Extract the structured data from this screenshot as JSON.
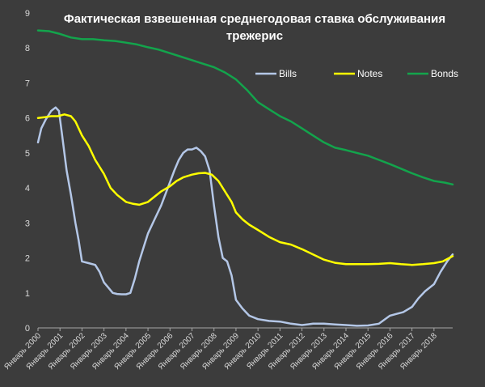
{
  "chart_data": {
    "type": "line",
    "title_line1": "Фактическая взвешенная среднегодовая ставка обслуживания",
    "title_line2": "трежерис",
    "xlabel": "",
    "ylabel": "",
    "ylim": [
      0,
      9
    ],
    "y_ticks": [
      "0",
      "1",
      "2",
      "3",
      "4",
      "5",
      "6",
      "7",
      "8",
      "9"
    ],
    "xlim": [
      2000,
      2018.85
    ],
    "x_ticks": [
      {
        "x": 2000,
        "label": "Январь 2000"
      },
      {
        "x": 2001,
        "label": "Январь 2001"
      },
      {
        "x": 2002,
        "label": "Январь 2002"
      },
      {
        "x": 2003,
        "label": "Январь 2003"
      },
      {
        "x": 2004,
        "label": "Январь 2004"
      },
      {
        "x": 2005,
        "label": "Январь 2005"
      },
      {
        "x": 2006,
        "label": "Январь 2006"
      },
      {
        "x": 2007,
        "label": "Январь 2007"
      },
      {
        "x": 2008,
        "label": "Январь 2008"
      },
      {
        "x": 2009,
        "label": "Январь 2009"
      },
      {
        "x": 2010,
        "label": "Январь 2010"
      },
      {
        "x": 2011,
        "label": "Январь 2011"
      },
      {
        "x": 2012,
        "label": "Январь 2012"
      },
      {
        "x": 2013,
        "label": "Январь 2013"
      },
      {
        "x": 2014,
        "label": "Январь 2014"
      },
      {
        "x": 2015,
        "label": "Январь 2015"
      },
      {
        "x": 2016,
        "label": "Январь 2016"
      },
      {
        "x": 2017,
        "label": "Январь 2017"
      },
      {
        "x": 2018,
        "label": "Январь 2018"
      }
    ],
    "grid": false,
    "legend_position": "top-right",
    "series": [
      {
        "name": "Bills",
        "color": "#b4c7e7",
        "x": [
          2000,
          2000.15,
          2000.35,
          2000.6,
          2000.8,
          2000.95,
          2001.1,
          2001.3,
          2001.5,
          2001.7,
          2001.85,
          2002.0,
          2002.3,
          2002.6,
          2002.8,
          2003.0,
          2003.2,
          2003.4,
          2003.6,
          2003.8,
          2004.0,
          2004.2,
          2004.4,
          2004.6,
          2004.8,
          2005.0,
          2005.3,
          2005.6,
          2005.9,
          2006.2,
          2006.4,
          2006.6,
          2006.8,
          2007.0,
          2007.2,
          2007.4,
          2007.6,
          2007.8,
          2008.0,
          2008.2,
          2008.4,
          2008.6,
          2008.8,
          2009.0,
          2009.3,
          2009.6,
          2010.0,
          2010.5,
          2011.0,
          2011.5,
          2012.0,
          2012.5,
          2013.0,
          2013.5,
          2014.0,
          2014.5,
          2015.0,
          2015.5,
          2016.0,
          2016.3,
          2016.6,
          2017.0,
          2017.3,
          2017.6,
          2018.0,
          2018.3,
          2018.6,
          2018.85
        ],
        "values": [
          5.3,
          5.7,
          5.95,
          6.2,
          6.3,
          6.2,
          5.5,
          4.5,
          3.8,
          3.0,
          2.5,
          1.9,
          1.85,
          1.8,
          1.6,
          1.3,
          1.15,
          1.0,
          0.97,
          0.96,
          0.96,
          1.0,
          1.4,
          1.9,
          2.3,
          2.7,
          3.1,
          3.5,
          4.0,
          4.5,
          4.8,
          5.0,
          5.1,
          5.1,
          5.15,
          5.05,
          4.9,
          4.5,
          3.5,
          2.6,
          2.0,
          1.9,
          1.5,
          0.8,
          0.55,
          0.35,
          0.25,
          0.2,
          0.18,
          0.12,
          0.08,
          0.12,
          0.12,
          0.1,
          0.08,
          0.06,
          0.07,
          0.12,
          0.35,
          0.4,
          0.45,
          0.6,
          0.85,
          1.05,
          1.25,
          1.6,
          1.9,
          2.1
        ]
      },
      {
        "name": "Notes",
        "color": "#ffff00",
        "x": [
          2000,
          2000.3,
          2000.6,
          2000.9,
          2001.2,
          2001.5,
          2001.7,
          2002.0,
          2002.3,
          2002.6,
          2003.0,
          2003.3,
          2003.6,
          2004.0,
          2004.3,
          2004.6,
          2005.0,
          2005.3,
          2005.6,
          2006.0,
          2006.3,
          2006.6,
          2007.0,
          2007.3,
          2007.6,
          2007.9,
          2008.2,
          2008.5,
          2008.8,
          2009.0,
          2009.3,
          2009.6,
          2010.0,
          2010.5,
          2011.0,
          2011.5,
          2012.0,
          2012.5,
          2013.0,
          2013.5,
          2014.0,
          2014.5,
          2015.0,
          2015.5,
          2016.0,
          2016.5,
          2017.0,
          2017.5,
          2018.0,
          2018.4,
          2018.85
        ],
        "values": [
          6.0,
          6.02,
          6.05,
          6.05,
          6.1,
          6.05,
          5.9,
          5.5,
          5.2,
          4.8,
          4.4,
          4.0,
          3.8,
          3.6,
          3.55,
          3.52,
          3.6,
          3.75,
          3.9,
          4.05,
          4.2,
          4.3,
          4.38,
          4.42,
          4.43,
          4.38,
          4.2,
          3.9,
          3.6,
          3.3,
          3.1,
          2.95,
          2.8,
          2.6,
          2.45,
          2.38,
          2.25,
          2.1,
          1.95,
          1.86,
          1.82,
          1.82,
          1.82,
          1.83,
          1.85,
          1.82,
          1.8,
          1.82,
          1.85,
          1.9,
          2.05
        ]
      },
      {
        "name": "Bonds",
        "color": "#13a44c",
        "x": [
          2000,
          2000.5,
          2001.0,
          2001.5,
          2002.0,
          2002.5,
          2003.0,
          2003.5,
          2004.0,
          2004.5,
          2005.0,
          2005.5,
          2006.0,
          2006.5,
          2007.0,
          2007.5,
          2008.0,
          2008.5,
          2009.0,
          2009.5,
          2010.0,
          2010.5,
          2011.0,
          2011.5,
          2012.0,
          2012.5,
          2013.0,
          2013.5,
          2014.0,
          2014.5,
          2015.0,
          2015.5,
          2016.0,
          2016.5,
          2017.0,
          2017.5,
          2018.0,
          2018.5,
          2018.85
        ],
        "values": [
          8.5,
          8.48,
          8.4,
          8.3,
          8.25,
          8.25,
          8.22,
          8.2,
          8.15,
          8.1,
          8.02,
          7.95,
          7.85,
          7.75,
          7.65,
          7.55,
          7.45,
          7.3,
          7.1,
          6.8,
          6.45,
          6.25,
          6.05,
          5.9,
          5.7,
          5.5,
          5.3,
          5.15,
          5.08,
          5.0,
          4.92,
          4.8,
          4.68,
          4.55,
          4.42,
          4.3,
          4.2,
          4.15,
          4.1
        ]
      }
    ]
  }
}
